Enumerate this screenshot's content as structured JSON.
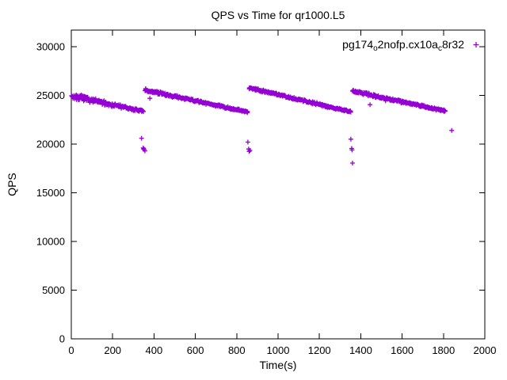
{
  "chart_data": {
    "type": "scatter",
    "title": "QPS vs Time for qr1000.L5",
    "xlabel": "Time(s)",
    "ylabel": "QPS",
    "xlim": [
      0,
      2000
    ],
    "ylim": [
      0,
      30000
    ],
    "xticks": [
      0,
      200,
      400,
      600,
      800,
      1000,
      1200,
      1400,
      1600,
      1800,
      2000
    ],
    "yticks": [
      0,
      5000,
      10000,
      15000,
      20000,
      25000,
      30000
    ],
    "grid": false,
    "legend_position": "top-right-inside",
    "marker": "plus",
    "color": "#9400D3",
    "series_label": "pg174_o2nofp.cx10a_c8r32",
    "legend_parts": [
      {
        "t": "pg174",
        "sub": false
      },
      {
        "t": "o",
        "sub": true
      },
      {
        "t": "2nofp.cx10a",
        "sub": false
      },
      {
        "t": "c",
        "sub": true
      },
      {
        "t": "8r32",
        "sub": false
      }
    ],
    "seed": 7,
    "segments": [
      {
        "t0": 2,
        "t1": 348,
        "q0": 24950,
        "q1": 23350,
        "spread0": 360,
        "spread1": 130,
        "n": 180
      },
      {
        "t0": 356,
        "t1": 852,
        "q0": 25550,
        "q1": 23300,
        "spread0": 170,
        "spread1": 130,
        "n": 250
      },
      {
        "t0": 860,
        "t1": 1352,
        "q0": 25800,
        "q1": 23300,
        "spread0": 170,
        "spread1": 130,
        "n": 250
      },
      {
        "t0": 1360,
        "t1": 1808,
        "q0": 25450,
        "q1": 23400,
        "spread0": 170,
        "spread1": 130,
        "n": 225
      }
    ],
    "outliers": [
      [
        340,
        20600
      ],
      [
        348,
        19600
      ],
      [
        350,
        19500
      ],
      [
        352,
        19450
      ],
      [
        356,
        19300
      ],
      [
        380,
        24700
      ],
      [
        854,
        20200
      ],
      [
        858,
        19500
      ],
      [
        860,
        19250
      ],
      [
        864,
        19350
      ],
      [
        1352,
        20500
      ],
      [
        1356,
        19550
      ],
      [
        1358,
        19400
      ],
      [
        1360,
        18050
      ],
      [
        1445,
        24050
      ],
      [
        1520,
        24450
      ],
      [
        1840,
        21400
      ]
    ]
  }
}
